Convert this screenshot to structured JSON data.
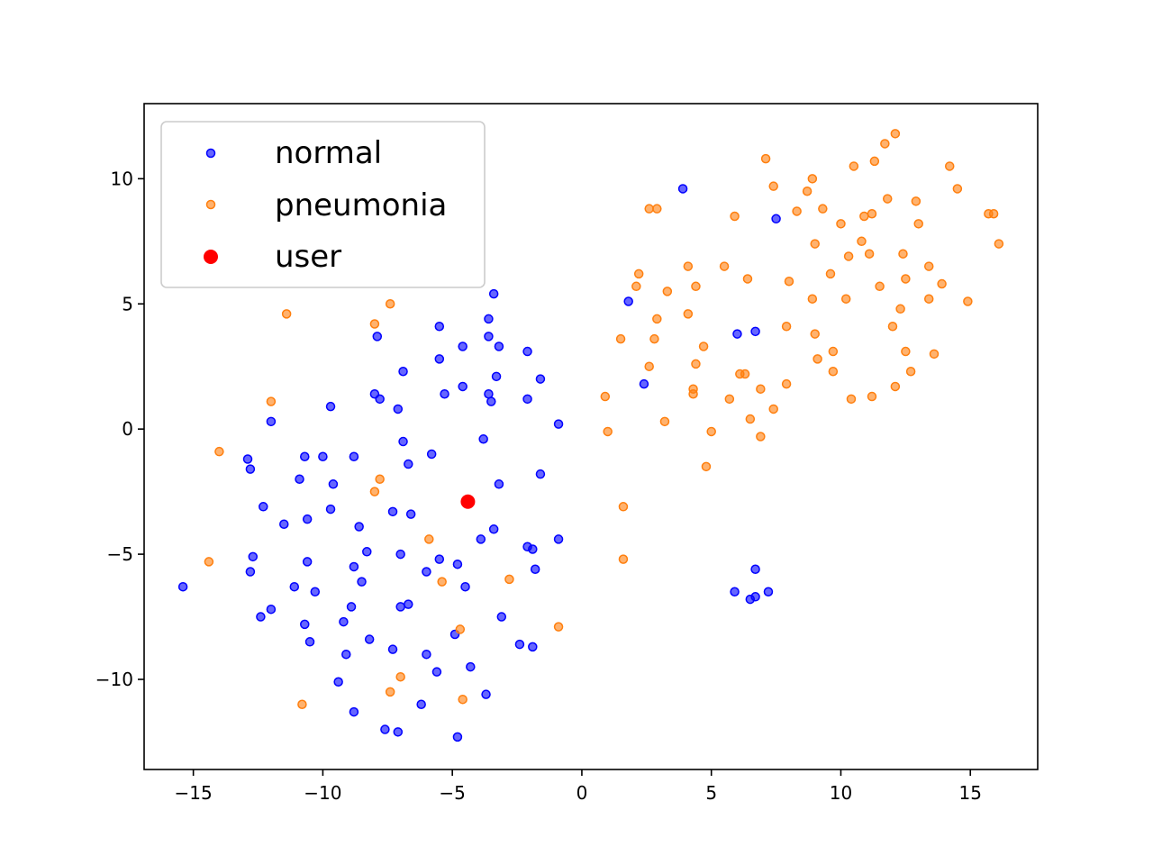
{
  "chart_data": {
    "type": "scatter",
    "xlim": [
      -16.9,
      17.6
    ],
    "ylim": [
      -13.6,
      13.0
    ],
    "xticks": [
      -15,
      -10,
      -5,
      0,
      5,
      10,
      15
    ],
    "yticks": [
      -10,
      -5,
      0,
      5,
      10
    ],
    "xtick_labels": [
      "−15",
      "−10",
      "−5",
      "0",
      "5",
      "10",
      "15"
    ],
    "ytick_labels": [
      "−10",
      "−5",
      "0",
      "5",
      "10"
    ],
    "grid": false,
    "legend_position": "top-left",
    "series": [
      {
        "name": "normal",
        "color": "#0000ff",
        "points": [
          [
            -15.4,
            -6.3
          ],
          [
            -12.9,
            -1.2
          ],
          [
            -12.8,
            -1.6
          ],
          [
            -12.8,
            -5.7
          ],
          [
            -12.7,
            -5.1
          ],
          [
            -12.4,
            -7.5
          ],
          [
            -12.3,
            -3.1
          ],
          [
            -12.0,
            0.3
          ],
          [
            -12.0,
            -7.2
          ],
          [
            -11.5,
            -3.8
          ],
          [
            -11.1,
            -6.3
          ],
          [
            -10.9,
            -2.0
          ],
          [
            -10.7,
            -1.1
          ],
          [
            -10.7,
            -7.8
          ],
          [
            -10.6,
            -3.6
          ],
          [
            -10.6,
            -5.3
          ],
          [
            -10.5,
            -8.5
          ],
          [
            -10.3,
            -6.5
          ],
          [
            -10.0,
            -1.1
          ],
          [
            -9.7,
            0.9
          ],
          [
            -9.7,
            -3.2
          ],
          [
            -9.6,
            -2.2
          ],
          [
            -9.4,
            -10.1
          ],
          [
            -9.2,
            -7.7
          ],
          [
            -9.1,
            -9.0
          ],
          [
            -8.9,
            -7.1
          ],
          [
            -8.8,
            -1.1
          ],
          [
            -8.8,
            -5.5
          ],
          [
            -8.8,
            -11.3
          ],
          [
            -8.6,
            -3.9
          ],
          [
            -8.5,
            -6.1
          ],
          [
            -8.3,
            -4.9
          ],
          [
            -8.2,
            -8.4
          ],
          [
            -8.0,
            1.4
          ],
          [
            -7.9,
            3.7
          ],
          [
            -7.8,
            1.2
          ],
          [
            -7.6,
            -12.0
          ],
          [
            -7.3,
            -3.3
          ],
          [
            -7.3,
            -8.8
          ],
          [
            -7.1,
            0.8
          ],
          [
            -7.1,
            -12.1
          ],
          [
            -7.0,
            -5.0
          ],
          [
            -7.0,
            -7.1
          ],
          [
            -6.9,
            2.3
          ],
          [
            -6.9,
            -0.5
          ],
          [
            -6.7,
            -1.4
          ],
          [
            -6.7,
            -7.0
          ],
          [
            -6.6,
            -3.4
          ],
          [
            -6.2,
            -11.0
          ],
          [
            -6.0,
            -5.7
          ],
          [
            -6.0,
            -9.0
          ],
          [
            -5.8,
            -1.0
          ],
          [
            -5.6,
            -9.7
          ],
          [
            -5.5,
            4.1
          ],
          [
            -5.5,
            2.8
          ],
          [
            -5.5,
            -5.2
          ],
          [
            -5.3,
            1.4
          ],
          [
            -4.9,
            -8.2
          ],
          [
            -4.8,
            -5.4
          ],
          [
            -4.8,
            -12.3
          ],
          [
            -4.6,
            3.3
          ],
          [
            -4.6,
            1.7
          ],
          [
            -4.5,
            -6.3
          ],
          [
            -4.3,
            -9.5
          ],
          [
            -3.9,
            -4.4
          ],
          [
            -3.8,
            -0.4
          ],
          [
            -3.7,
            -10.6
          ],
          [
            -3.6,
            3.7
          ],
          [
            -3.6,
            1.4
          ],
          [
            -3.6,
            4.4
          ],
          [
            -3.5,
            1.1
          ],
          [
            -3.4,
            5.4
          ],
          [
            -3.4,
            -4.0
          ],
          [
            -3.3,
            2.1
          ],
          [
            -3.2,
            3.3
          ],
          [
            -3.2,
            -2.2
          ],
          [
            -3.1,
            -7.5
          ],
          [
            -2.4,
            -8.6
          ],
          [
            -2.1,
            -4.7
          ],
          [
            -2.1,
            3.1
          ],
          [
            -2.1,
            1.2
          ],
          [
            -1.9,
            -8.7
          ],
          [
            -1.9,
            -4.8
          ],
          [
            -1.8,
            -5.6
          ],
          [
            -1.6,
            -1.8
          ],
          [
            -1.6,
            2.0
          ],
          [
            -0.9,
            0.2
          ],
          [
            -0.9,
            -4.4
          ],
          [
            1.8,
            5.1
          ],
          [
            2.4,
            1.8
          ],
          [
            3.9,
            9.6
          ],
          [
            5.9,
            -6.5
          ],
          [
            6.0,
            3.8
          ],
          [
            6.5,
            -6.8
          ],
          [
            6.7,
            3.9
          ],
          [
            6.7,
            -6.7
          ],
          [
            6.7,
            -5.6
          ],
          [
            7.2,
            -6.5
          ],
          [
            7.5,
            8.4
          ]
        ]
      },
      {
        "name": "pneumonia",
        "color": "#ff7f0e",
        "points": [
          [
            -14.4,
            -5.3
          ],
          [
            -14.0,
            -0.9
          ],
          [
            -12.0,
            1.1
          ],
          [
            -11.4,
            4.6
          ],
          [
            -10.8,
            -11.0
          ],
          [
            -8.0,
            4.2
          ],
          [
            -8.0,
            -2.5
          ],
          [
            -7.8,
            -2.0
          ],
          [
            -7.4,
            -10.5
          ],
          [
            -7.4,
            5.0
          ],
          [
            -7.0,
            -9.9
          ],
          [
            -5.9,
            -4.4
          ],
          [
            -5.4,
            -6.1
          ],
          [
            -4.7,
            -8.0
          ],
          [
            -4.6,
            -10.8
          ],
          [
            -2.8,
            -6.0
          ],
          [
            -0.9,
            -7.9
          ],
          [
            0.9,
            1.3
          ],
          [
            1.0,
            -0.1
          ],
          [
            1.5,
            3.6
          ],
          [
            1.6,
            -3.1
          ],
          [
            1.6,
            -5.2
          ],
          [
            2.1,
            5.7
          ],
          [
            2.2,
            6.2
          ],
          [
            2.6,
            2.5
          ],
          [
            2.6,
            8.8
          ],
          [
            2.8,
            3.6
          ],
          [
            2.9,
            8.8
          ],
          [
            2.9,
            4.4
          ],
          [
            3.2,
            0.3
          ],
          [
            3.3,
            5.5
          ],
          [
            4.1,
            6.5
          ],
          [
            4.1,
            4.6
          ],
          [
            4.3,
            1.6
          ],
          [
            4.3,
            1.4
          ],
          [
            4.4,
            5.7
          ],
          [
            4.4,
            2.6
          ],
          [
            4.7,
            3.3
          ],
          [
            4.8,
            -1.5
          ],
          [
            5.0,
            -0.1
          ],
          [
            5.5,
            6.5
          ],
          [
            5.7,
            1.2
          ],
          [
            5.9,
            8.5
          ],
          [
            6.1,
            2.2
          ],
          [
            6.3,
            2.2
          ],
          [
            6.4,
            6.0
          ],
          [
            6.5,
            0.4
          ],
          [
            6.9,
            1.6
          ],
          [
            6.9,
            -0.3
          ],
          [
            7.1,
            10.8
          ],
          [
            7.4,
            0.8
          ],
          [
            7.4,
            9.7
          ],
          [
            7.9,
            4.1
          ],
          [
            7.9,
            1.8
          ],
          [
            8.0,
            5.9
          ],
          [
            8.3,
            8.7
          ],
          [
            8.7,
            9.5
          ],
          [
            8.9,
            10.0
          ],
          [
            8.9,
            5.2
          ],
          [
            9.0,
            7.4
          ],
          [
            9.0,
            3.8
          ],
          [
            9.1,
            2.8
          ],
          [
            9.3,
            8.8
          ],
          [
            9.6,
            6.2
          ],
          [
            9.7,
            2.3
          ],
          [
            9.7,
            3.1
          ],
          [
            10.0,
            8.2
          ],
          [
            10.2,
            5.2
          ],
          [
            10.3,
            6.9
          ],
          [
            10.4,
            1.2
          ],
          [
            10.5,
            10.5
          ],
          [
            10.8,
            7.5
          ],
          [
            10.9,
            8.5
          ],
          [
            11.1,
            7.0
          ],
          [
            11.2,
            8.6
          ],
          [
            11.2,
            1.3
          ],
          [
            11.3,
            10.7
          ],
          [
            11.5,
            5.7
          ],
          [
            11.7,
            11.4
          ],
          [
            11.8,
            9.2
          ],
          [
            12.0,
            4.1
          ],
          [
            12.1,
            11.8
          ],
          [
            12.1,
            1.7
          ],
          [
            12.3,
            4.8
          ],
          [
            12.4,
            7.0
          ],
          [
            12.5,
            6.0
          ],
          [
            12.5,
            3.1
          ],
          [
            12.7,
            2.3
          ],
          [
            12.9,
            9.1
          ],
          [
            13.0,
            8.2
          ],
          [
            13.4,
            5.2
          ],
          [
            13.4,
            6.5
          ],
          [
            13.6,
            3.0
          ],
          [
            13.9,
            5.8
          ],
          [
            14.2,
            10.5
          ],
          [
            14.5,
            9.6
          ],
          [
            14.9,
            5.1
          ],
          [
            15.7,
            8.6
          ],
          [
            15.9,
            8.6
          ],
          [
            16.1,
            7.4
          ]
        ]
      },
      {
        "name": "user",
        "color": "#ff0000",
        "points": [
          [
            -4.4,
            -2.9
          ]
        ]
      }
    ]
  }
}
